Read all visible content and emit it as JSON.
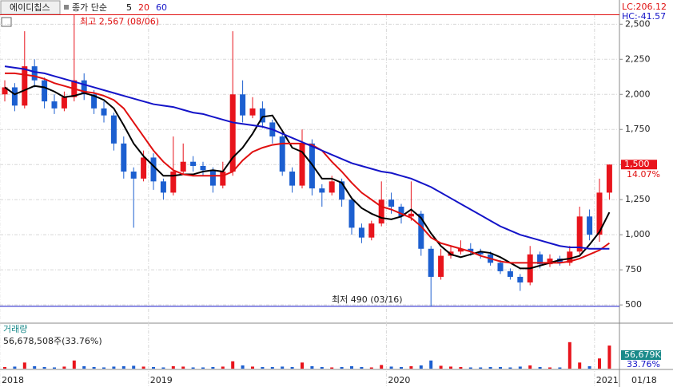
{
  "chart_data": {
    "type": "candlestick",
    "title": "에이디칩스",
    "legend_label": "종가 단순",
    "lc": "LC:206.12",
    "hc": "HC:-41.57",
    "categories": [
      "2018",
      null,
      null,
      null,
      null,
      null,
      null,
      null,
      null,
      null,
      null,
      null,
      null,
      null,
      null,
      "2019",
      null,
      null,
      null,
      null,
      null,
      null,
      null,
      null,
      null,
      null,
      null,
      null,
      null,
      null,
      null,
      null,
      null,
      null,
      null,
      null,
      null,
      null,
      null,
      "2020",
      null,
      null,
      null,
      null,
      null,
      null,
      null,
      null,
      null,
      null,
      null,
      null,
      null,
      null,
      null,
      null,
      null,
      null,
      null,
      null,
      "2021",
      null
    ],
    "last_date": "01/18",
    "open": [
      2000,
      2050,
      1920,
      2200,
      2100,
      1950,
      1900,
      1980,
      2100,
      2000,
      1900,
      1850,
      1650,
      1450,
      1400,
      1550,
      1380,
      1300,
      1450,
      1520,
      1490,
      1460,
      1350,
      1450,
      2000,
      1850,
      1900,
      1800,
      1700,
      1450,
      1350,
      1650,
      1330,
      1300,
      1380,
      1250,
      1050,
      980,
      1080,
      1250,
      1200,
      1130,
      1150,
      900,
      700,
      850,
      880,
      900,
      880,
      860,
      800,
      740,
      700,
      660,
      860,
      790,
      830,
      800,
      880,
      1130,
      1000,
      1300
    ],
    "high": [
      2100,
      2080,
      2450,
      2250,
      2120,
      2000,
      2020,
      2567,
      2150,
      2030,
      1950,
      1870,
      1700,
      1480,
      1600,
      1580,
      1400,
      1700,
      1650,
      1560,
      1520,
      1480,
      1520,
      2450,
      2100,
      1980,
      1950,
      1820,
      1720,
      1480,
      1750,
      1680,
      1360,
      1420,
      1400,
      1270,
      1080,
      1100,
      1380,
      1300,
      1220,
      1380,
      1170,
      920,
      900,
      920,
      960,
      940,
      900,
      880,
      820,
      760,
      720,
      920,
      880,
      860,
      850,
      920,
      1200,
      1180,
      1400,
      1500
    ],
    "low": [
      1950,
      1880,
      1900,
      2050,
      1900,
      1860,
      1880,
      1950,
      1960,
      1860,
      1800,
      1600,
      1400,
      1050,
      1380,
      1320,
      1250,
      1280,
      1430,
      1450,
      1420,
      1300,
      1330,
      1420,
      1800,
      1830,
      1760,
      1650,
      1420,
      1300,
      1330,
      1280,
      1200,
      1280,
      1200,
      1000,
      940,
      960,
      1060,
      1150,
      1080,
      1100,
      850,
      490,
      680,
      830,
      860,
      850,
      830,
      780,
      720,
      680,
      600,
      640,
      760,
      770,
      780,
      780,
      860,
      960,
      950,
      1250
    ],
    "close": [
      2050,
      1920,
      2200,
      2100,
      1950,
      1900,
      1980,
      2100,
      2000,
      1900,
      1850,
      1650,
      1450,
      1400,
      1550,
      1380,
      1300,
      1450,
      1520,
      1490,
      1460,
      1350,
      1450,
      2000,
      1850,
      1900,
      1800,
      1700,
      1450,
      1350,
      1650,
      1330,
      1300,
      1380,
      1250,
      1050,
      980,
      1080,
      1250,
      1200,
      1130,
      1150,
      900,
      700,
      850,
      880,
      900,
      880,
      860,
      800,
      740,
      700,
      660,
      860,
      790,
      830,
      800,
      880,
      1130,
      1000,
      1300,
      1500
    ],
    "up_color": "#e8141c",
    "down_color": "#1c5fd0",
    "series": [
      {
        "name": "5",
        "color": "#000000",
        "values": [
          2050,
          2000,
          2030,
          2060,
          2050,
          2020,
          1980,
          1990,
          2010,
          1990,
          1960,
          1900,
          1780,
          1650,
          1560,
          1490,
          1420,
          1420,
          1430,
          1430,
          1450,
          1460,
          1450,
          1550,
          1620,
          1720,
          1840,
          1850,
          1740,
          1620,
          1590,
          1500,
          1400,
          1400,
          1370,
          1260,
          1190,
          1150,
          1120,
          1110,
          1130,
          1180,
          1120,
          1010,
          920,
          860,
          840,
          860,
          880,
          870,
          840,
          800,
          760,
          760,
          780,
          800,
          820,
          830,
          850,
          930,
          1020,
          1160
        ]
      },
      {
        "name": "20",
        "color": "#e01010",
        "values": [
          2150,
          2150,
          2140,
          2130,
          2110,
          2080,
          2060,
          2040,
          2020,
          2010,
          1990,
          1960,
          1900,
          1800,
          1700,
          1600,
          1520,
          1460,
          1430,
          1420,
          1420,
          1420,
          1420,
          1450,
          1530,
          1590,
          1620,
          1640,
          1650,
          1650,
          1650,
          1640,
          1600,
          1520,
          1450,
          1370,
          1300,
          1250,
          1200,
          1180,
          1150,
          1120,
          1060,
          980,
          940,
          920,
          900,
          880,
          850,
          830,
          810,
          800,
          800,
          800,
          800,
          800,
          800,
          810,
          830,
          860,
          890,
          940
        ]
      },
      {
        "name": "60",
        "color": "#1414c8",
        "values": [
          2200,
          2190,
          2180,
          2160,
          2150,
          2130,
          2110,
          2090,
          2070,
          2050,
          2030,
          2010,
          1990,
          1970,
          1950,
          1930,
          1920,
          1910,
          1890,
          1870,
          1860,
          1840,
          1820,
          1800,
          1790,
          1780,
          1770,
          1750,
          1720,
          1690,
          1660,
          1630,
          1600,
          1570,
          1540,
          1510,
          1490,
          1470,
          1450,
          1440,
          1420,
          1400,
          1370,
          1340,
          1300,
          1260,
          1220,
          1180,
          1140,
          1100,
          1060,
          1030,
          1000,
          980,
          960,
          940,
          920,
          910,
          910,
          900,
          900,
          900
        ]
      }
    ],
    "ylim": [
      370,
      2570
    ],
    "yticks": [
      {
        "value": 500,
        "label": "500"
      },
      {
        "value": 750,
        "label": "750"
      },
      {
        "value": 1000,
        "label": "1,000"
      },
      {
        "value": 1250,
        "label": "1,250"
      },
      {
        "value": 1500,
        "label": "1,500"
      },
      {
        "value": 1750,
        "label": "1,750"
      },
      {
        "value": 2000,
        "label": "2,000"
      },
      {
        "value": 2250,
        "label": "2,250"
      },
      {
        "value": 2500,
        "label": "2,500"
      }
    ],
    "high_annotation": {
      "value": 2567,
      "label": "최고 2,567 (08/06)"
    },
    "low_annotation": {
      "value": 490,
      "label": "최저 490 (03/16)"
    },
    "last_price": {
      "value": 1500,
      "label": "1,500"
    },
    "change_label": "14.07%",
    "volume": {
      "title": "거래량",
      "summary": "56,678,508주(33.76%)",
      "last_label": "56,679K",
      "last_pct": "33.76%",
      "vlim": [
        0,
        92000
      ],
      "values": [
        4000,
        5000,
        15000,
        6000,
        4000,
        3000,
        5000,
        20000,
        6000,
        4000,
        3000,
        5000,
        6000,
        7000,
        5000,
        4000,
        3000,
        6000,
        5000,
        3000,
        3000,
        4000,
        5000,
        18000,
        8000,
        5000,
        4000,
        4000,
        5000,
        4000,
        15000,
        6000,
        4000,
        3000,
        4000,
        6000,
        4000,
        3000,
        9000,
        5000,
        4000,
        6000,
        8000,
        20000,
        7000,
        5000,
        4000,
        3000,
        3000,
        4000,
        4000,
        3000,
        5000,
        8000,
        4000,
        3000,
        3000,
        65000,
        15000,
        6000,
        25000,
        56679
      ]
    }
  }
}
